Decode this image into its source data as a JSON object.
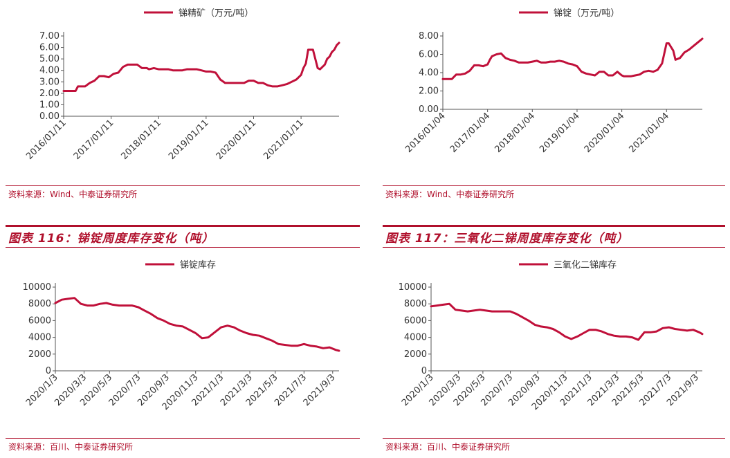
{
  "sources": {
    "top_left": "资料来源：Wind、中泰证券研究所",
    "top_right": "资料来源：Wind、中泰证券研究所",
    "bottom_left": "资料来源：百川、中泰证券研究所",
    "bottom_right": "资料来源：百川、中泰证券研究所"
  },
  "figure_titles": {
    "left": "图表 116：锑锭周度库存变化（吨）",
    "right": "图表 117：三氧化二锑周度库存变化（吨）"
  },
  "colors": {
    "line": "#c0103a",
    "accent": "#b0102c"
  },
  "chart_data": [
    {
      "type": "line",
      "legend": "锑精矿（万元/吨）",
      "legend_position": "top-center",
      "ylim": [
        0,
        7
      ],
      "yticks": [
        0,
        1,
        2,
        3,
        4,
        5,
        6,
        7
      ],
      "ytick_labels": [
        "0.00",
        "1.00",
        "2.00",
        "3.00",
        "4.00",
        "5.00",
        "6.00",
        "7.00"
      ],
      "xlim": [
        0,
        5.8
      ],
      "xtick_pos": [
        0,
        1,
        2,
        3,
        4,
        5
      ],
      "xtick_labels": [
        "2016/01/11",
        "2017/01/11",
        "2018/01/11",
        "2019/01/11",
        "2020/01/11",
        "2021/01/11"
      ],
      "series": [
        {
          "x": [
            0,
            0.15,
            0.25,
            0.3,
            0.45,
            0.55,
            0.65,
            0.75,
            0.85,
            0.95,
            1.05,
            1.15,
            1.25,
            1.35,
            1.45,
            1.55,
            1.65,
            1.75,
            1.8,
            1.9,
            2.0,
            2.1,
            2.2,
            2.3,
            2.4,
            2.5,
            2.6,
            2.7,
            2.8,
            2.9,
            3.0,
            3.1,
            3.2,
            3.3,
            3.4,
            3.5,
            3.6,
            3.7,
            3.8,
            3.9,
            4.0,
            4.1,
            4.2,
            4.3,
            4.4,
            4.5,
            4.6,
            4.7,
            4.8,
            4.9,
            5.0,
            5.05,
            5.1,
            5.15,
            5.2,
            5.25,
            5.3,
            5.35,
            5.4,
            5.45,
            5.5,
            5.55,
            5.6,
            5.65,
            5.7,
            5.75,
            5.8
          ],
          "y": [
            2.2,
            2.2,
            2.2,
            2.6,
            2.6,
            2.9,
            3.1,
            3.5,
            3.5,
            3.4,
            3.7,
            3.8,
            4.3,
            4.5,
            4.5,
            4.5,
            4.2,
            4.2,
            4.1,
            4.2,
            4.1,
            4.1,
            4.1,
            4.0,
            4.0,
            4.0,
            4.1,
            4.1,
            4.1,
            4.0,
            3.9,
            3.9,
            3.8,
            3.2,
            2.9,
            2.9,
            2.9,
            2.9,
            2.9,
            3.1,
            3.1,
            2.9,
            2.9,
            2.7,
            2.6,
            2.6,
            2.7,
            2.8,
            3.0,
            3.2,
            3.6,
            4.2,
            4.6,
            5.8,
            5.8,
            5.8,
            5.0,
            4.2,
            4.1,
            4.3,
            4.5,
            5.0,
            5.2,
            5.6,
            5.8,
            6.2,
            6.4
          ]
        }
      ]
    },
    {
      "type": "line",
      "legend": "锑锭（万元/吨）",
      "legend_position": "top-center",
      "ylim": [
        0,
        8
      ],
      "yticks": [
        0,
        2,
        4,
        6,
        8
      ],
      "ytick_labels": [
        "0.00",
        "2.00",
        "4.00",
        "6.00",
        "8.00"
      ],
      "xlim": [
        0,
        5.8
      ],
      "xtick_pos": [
        0,
        1,
        2,
        3,
        4,
        5
      ],
      "xtick_labels": [
        "2016/01/04",
        "2017/01/04",
        "2018/01/04",
        "2019/01/04",
        "2020/01/04",
        "2021/01/04"
      ],
      "series": [
        {
          "x": [
            0,
            0.1,
            0.2,
            0.3,
            0.4,
            0.5,
            0.6,
            0.7,
            0.8,
            0.9,
            1.0,
            1.05,
            1.1,
            1.2,
            1.3,
            1.4,
            1.5,
            1.6,
            1.7,
            1.8,
            1.9,
            2.0,
            2.1,
            2.2,
            2.3,
            2.4,
            2.5,
            2.6,
            2.7,
            2.8,
            2.9,
            3.0,
            3.1,
            3.2,
            3.3,
            3.4,
            3.5,
            3.6,
            3.7,
            3.8,
            3.9,
            4.0,
            4.05,
            4.1,
            4.2,
            4.3,
            4.4,
            4.5,
            4.6,
            4.7,
            4.8,
            4.9,
            5.0,
            5.05,
            5.1,
            5.15,
            5.2,
            5.3,
            5.4,
            5.5,
            5.6,
            5.7,
            5.8
          ],
          "y": [
            3.3,
            3.3,
            3.3,
            3.8,
            3.8,
            3.9,
            4.2,
            4.8,
            4.8,
            4.7,
            4.9,
            5.4,
            5.8,
            6.0,
            6.1,
            5.6,
            5.4,
            5.3,
            5.1,
            5.1,
            5.1,
            5.2,
            5.3,
            5.1,
            5.1,
            5.2,
            5.2,
            5.3,
            5.2,
            5.0,
            4.9,
            4.7,
            4.1,
            3.9,
            3.8,
            3.7,
            4.1,
            4.1,
            3.7,
            3.7,
            4.1,
            3.7,
            3.6,
            3.6,
            3.6,
            3.7,
            3.8,
            4.1,
            4.2,
            4.1,
            4.3,
            5.0,
            7.2,
            7.2,
            6.8,
            6.4,
            5.4,
            5.6,
            6.2,
            6.5,
            6.9,
            7.3,
            7.7
          ]
        }
      ]
    },
    {
      "type": "line",
      "legend": "锑锭库存",
      "legend_position": "top-center",
      "ylim": [
        0,
        10000
      ],
      "yticks": [
        0,
        2000,
        4000,
        6000,
        8000,
        10000
      ],
      "ytick_labels": [
        "0",
        "2000",
        "4000",
        "6000",
        "8000",
        "10000"
      ],
      "xlim": [
        0,
        89
      ],
      "xtick_pos": [
        0,
        9,
        17,
        26,
        35,
        44,
        52,
        61,
        69,
        78,
        87
      ],
      "xtick_labels": [
        "2020/1/3",
        "2020/3/3",
        "2020/5/3",
        "2020/7/3",
        "2020/9/3",
        "2020/11/3",
        "2021/1/3",
        "2021/3/3",
        "2021/5/3",
        "2021/7/3",
        "2021/9/3"
      ],
      "series": [
        {
          "x": [
            0,
            2,
            4,
            6,
            8,
            10,
            12,
            14,
            16,
            18,
            20,
            22,
            24,
            26,
            28,
            30,
            32,
            34,
            36,
            38,
            40,
            42,
            44,
            46,
            48,
            50,
            52,
            54,
            56,
            58,
            60,
            62,
            64,
            66,
            68,
            70,
            72,
            74,
            76,
            78,
            80,
            82,
            84,
            86,
            88,
            89
          ],
          "y": [
            8100,
            8500,
            8600,
            8700,
            8000,
            7800,
            7800,
            8000,
            8100,
            7900,
            7800,
            7800,
            7800,
            7600,
            7200,
            6800,
            6300,
            6000,
            5600,
            5400,
            5300,
            4900,
            4500,
            3900,
            4000,
            4600,
            5200,
            5400,
            5200,
            4800,
            4500,
            4300,
            4200,
            3900,
            3600,
            3200,
            3100,
            3000,
            3000,
            3200,
            3000,
            2900,
            2700,
            2800,
            2500,
            2400
          ]
        }
      ]
    },
    {
      "type": "line",
      "legend": "三氧化二锑库存",
      "legend_position": "top-center",
      "ylim": [
        0,
        10000
      ],
      "yticks": [
        0,
        2000,
        4000,
        6000,
        8000,
        10000
      ],
      "ytick_labels": [
        "0",
        "2000",
        "4000",
        "6000",
        "8000",
        "10000"
      ],
      "xlim": [
        0,
        89
      ],
      "xtick_pos": [
        0,
        9,
        17,
        26,
        35,
        44,
        52,
        61,
        69,
        78,
        87
      ],
      "xtick_labels": [
        "2020/1/3",
        "2020/3/3",
        "2020/5/3",
        "2020/7/3",
        "2020/9/3",
        "2020/11/3",
        "2021/1/3",
        "2021/3/3",
        "2021/5/3",
        "2021/7/3",
        "2021/9/3"
      ],
      "series": [
        {
          "x": [
            0,
            2,
            4,
            6,
            8,
            10,
            12,
            14,
            16,
            18,
            20,
            22,
            24,
            26,
            28,
            30,
            32,
            34,
            36,
            38,
            40,
            42,
            44,
            46,
            48,
            50,
            52,
            54,
            56,
            58,
            60,
            62,
            64,
            66,
            68,
            70,
            72,
            74,
            76,
            78,
            80,
            82,
            84,
            86,
            88,
            89
          ],
          "y": [
            7700,
            7800,
            7900,
            8000,
            7300,
            7200,
            7100,
            7200,
            7300,
            7200,
            7100,
            7100,
            7100,
            7100,
            6800,
            6400,
            6000,
            5500,
            5300,
            5200,
            5000,
            4600,
            4100,
            3800,
            4100,
            4500,
            4900,
            4900,
            4700,
            4400,
            4200,
            4100,
            4100,
            4000,
            3700,
            4600,
            4600,
            4700,
            5100,
            5200,
            5000,
            4900,
            4800,
            4900,
            4600,
            4400
          ]
        }
      ]
    }
  ]
}
